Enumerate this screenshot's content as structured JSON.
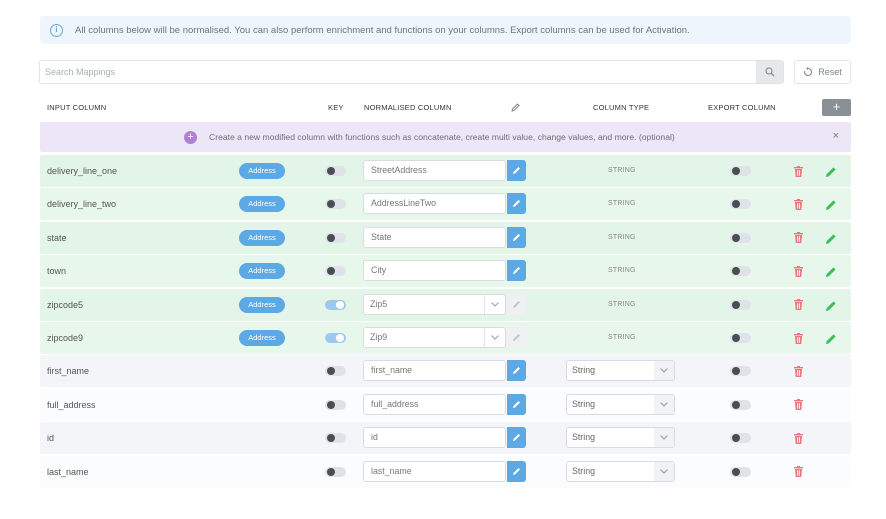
{
  "info_banner": {
    "text": "All columns below will be normalised. You can also perform enrichment and functions on your columns. Export columns can be used for Activation."
  },
  "search": {
    "placeholder": "Search Mappings",
    "value": ""
  },
  "reset_label": "Reset",
  "headers": {
    "input_column": "INPUT COLUMN",
    "key": "KEY",
    "normalised_column": "NORMALISED COLUMN",
    "column_type": "COLUMN TYPE",
    "export_column": "EXPORT COLUMN"
  },
  "add_column_label": "+",
  "create_bar": {
    "text": "Create a new modified column with functions such as concatenate, create multi value, change values, and more. (optional)",
    "close": "×"
  },
  "colors": {
    "accent": "#5da9e6",
    "green_row": "#e2f5e8",
    "purple_bar": "#ede6f6",
    "delete": "#e8787e",
    "edit_green": "#3bbf5a"
  },
  "rows": [
    {
      "input": "delivery_line_one",
      "badge": "Address",
      "key_on": false,
      "normalised": "StreetAddress",
      "norm_kind": "input",
      "type": "STRING",
      "type_kind": "text",
      "export_on": false
    },
    {
      "input": "delivery_line_two",
      "badge": "Address",
      "key_on": false,
      "normalised": "AddressLineTwo",
      "norm_kind": "input",
      "type": "STRING",
      "type_kind": "text",
      "export_on": false
    },
    {
      "input": "state",
      "badge": "Address",
      "key_on": false,
      "normalised": "State",
      "norm_kind": "input",
      "type": "STRING",
      "type_kind": "text",
      "export_on": false
    },
    {
      "input": "town",
      "badge": "Address",
      "key_on": false,
      "normalised": "City",
      "norm_kind": "input",
      "type": "STRING",
      "type_kind": "text",
      "export_on": false
    },
    {
      "input": "zipcode5",
      "badge": "Address",
      "key_on": true,
      "normalised": "Zip5",
      "norm_kind": "select",
      "type": "STRING",
      "type_kind": "text",
      "export_on": false
    },
    {
      "input": "zipcode9",
      "badge": "Address",
      "key_on": true,
      "normalised": "Zip9",
      "norm_kind": "select",
      "type": "STRING",
      "type_kind": "text",
      "export_on": false
    },
    {
      "input": "first_name",
      "badge": null,
      "key_on": false,
      "normalised": "first_name",
      "norm_kind": "input",
      "type": "String",
      "type_kind": "select",
      "export_on": false
    },
    {
      "input": "full_address",
      "badge": null,
      "key_on": false,
      "normalised": "full_address",
      "norm_kind": "input",
      "type": "String",
      "type_kind": "select",
      "export_on": false
    },
    {
      "input": "id",
      "badge": null,
      "key_on": false,
      "normalised": "id",
      "norm_kind": "input",
      "type": "String",
      "type_kind": "select",
      "export_on": false
    },
    {
      "input": "last_name",
      "badge": null,
      "key_on": false,
      "normalised": "last_name",
      "norm_kind": "input",
      "type": "String",
      "type_kind": "select",
      "export_on": false
    }
  ]
}
